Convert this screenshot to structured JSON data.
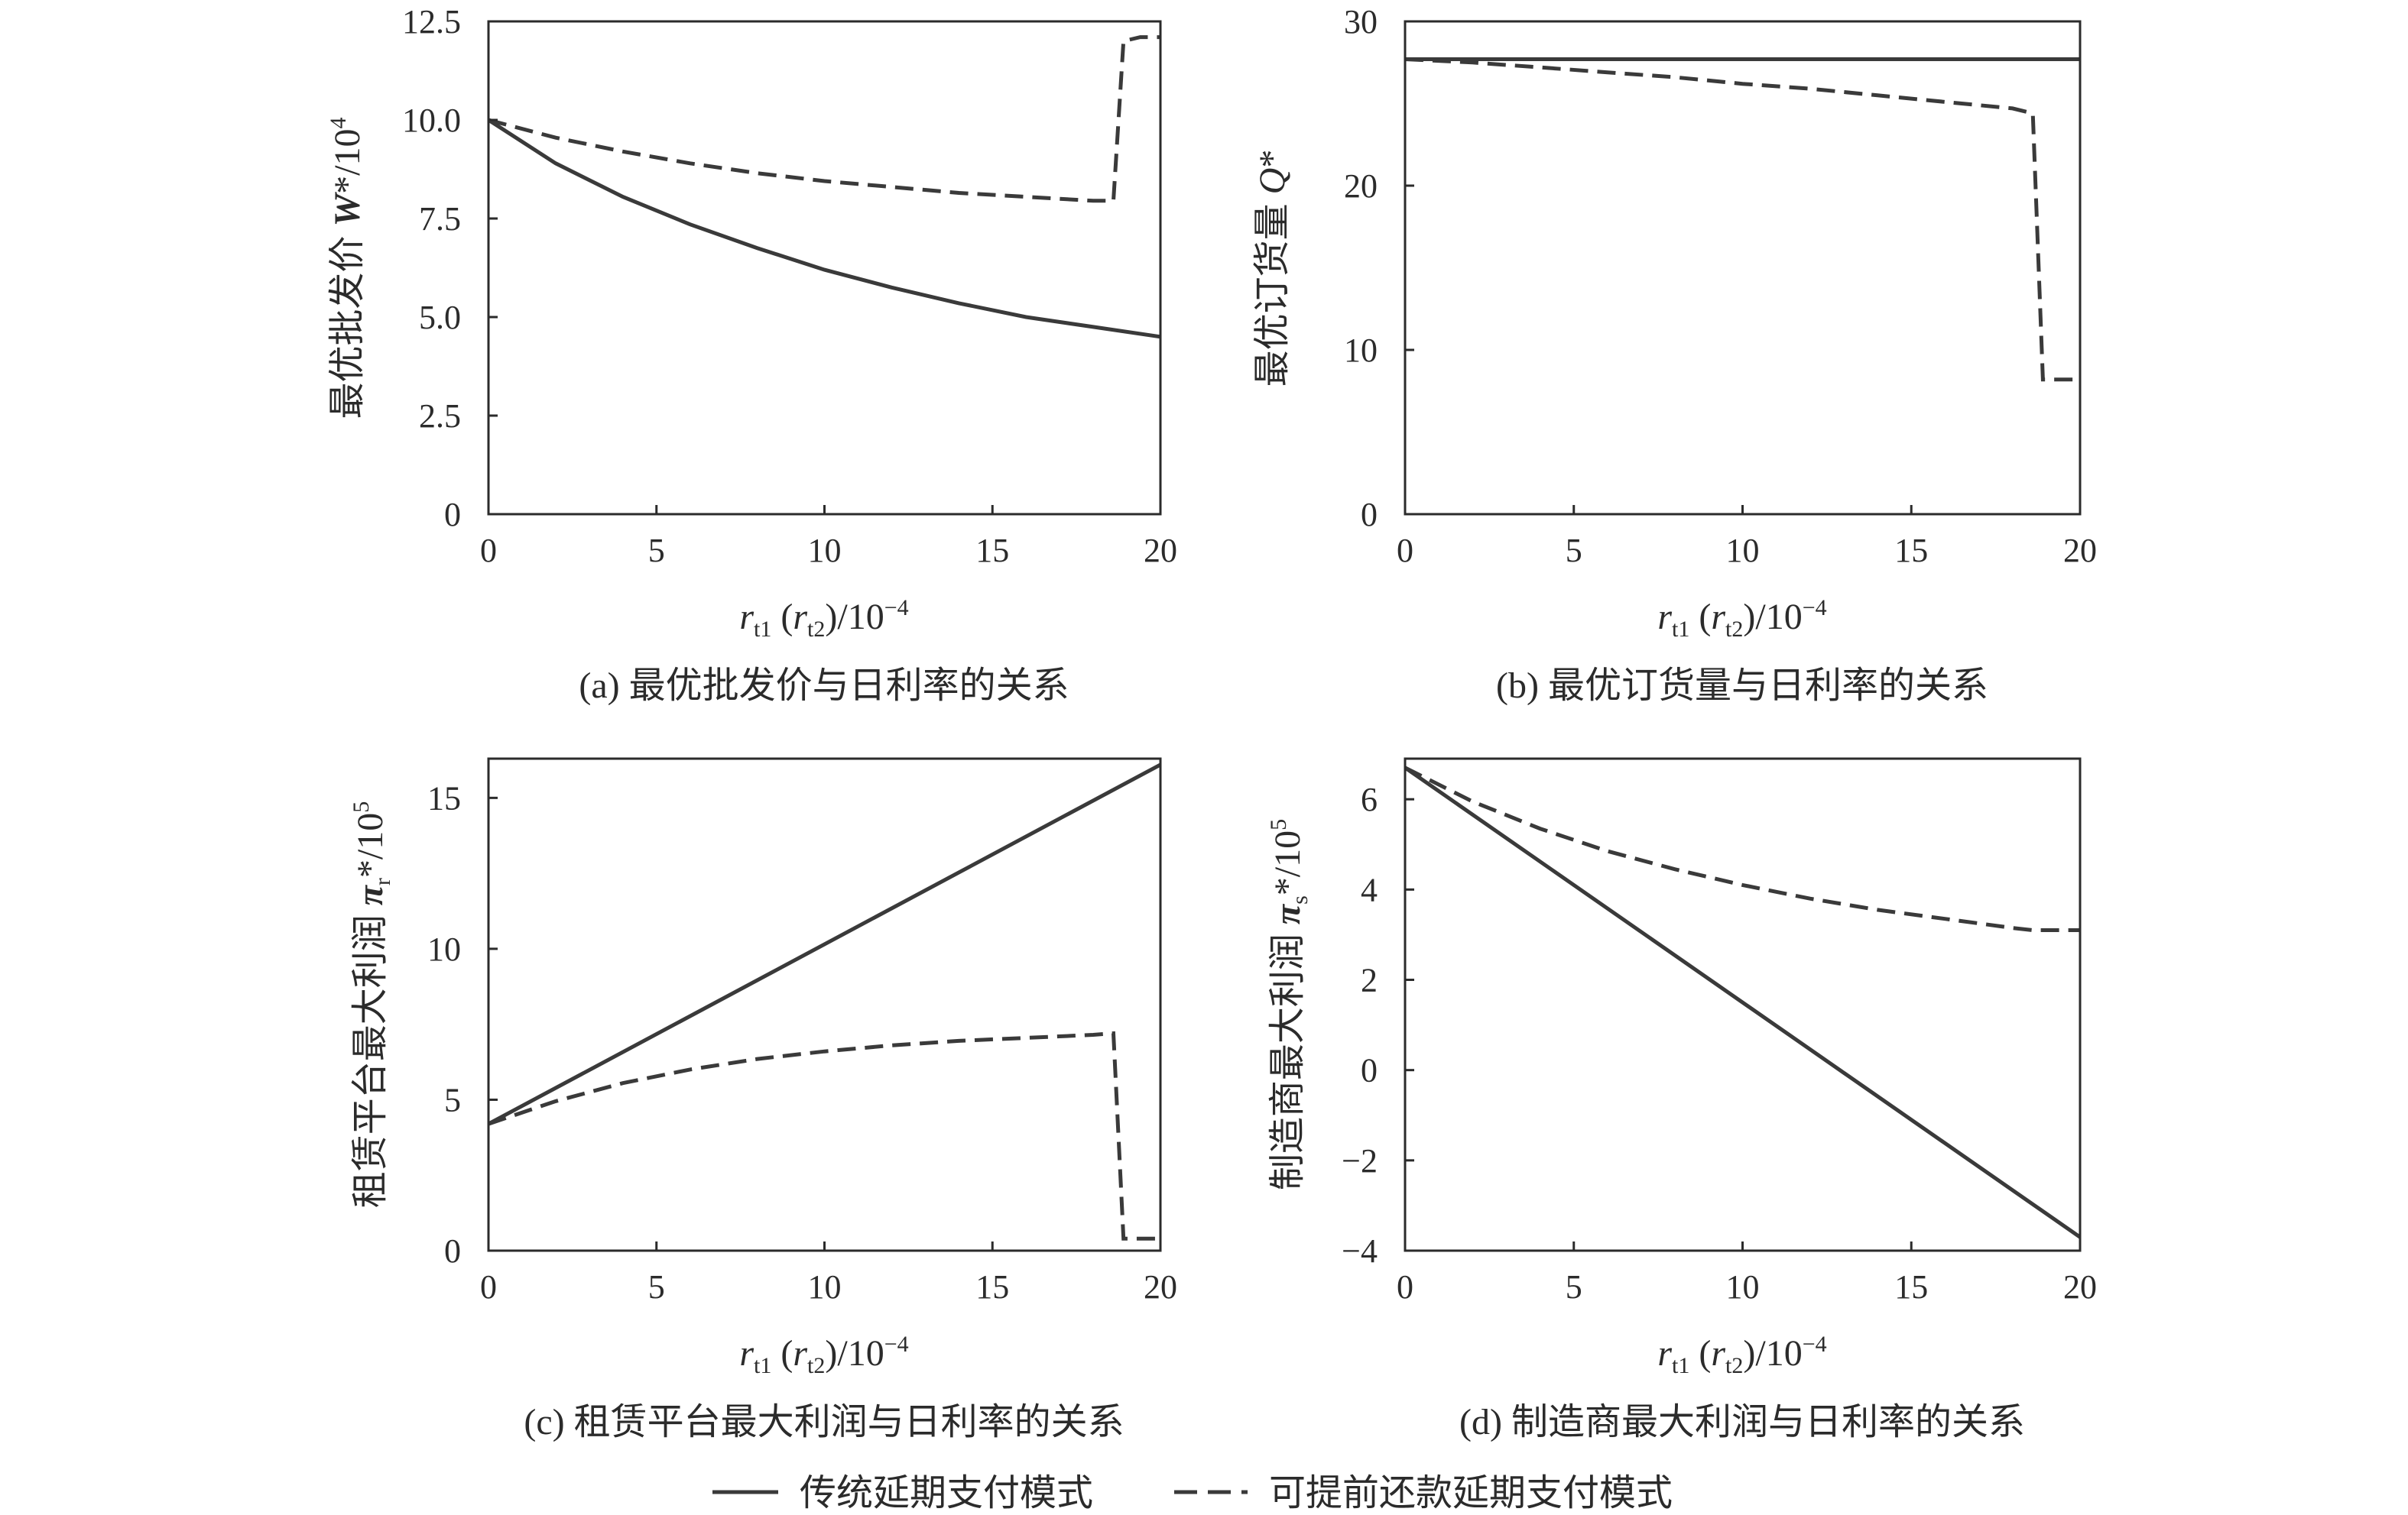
{
  "legend": {
    "solid_label": "传统延期支付模式",
    "dashed_label": "可提前还款延期支付模式"
  },
  "chart_data": [
    {
      "id": "a",
      "type": "line",
      "caption": "(a) 最优批发价与日利率的关系",
      "ylabel": "最优批发价 W*/10⁴",
      "xlabel": "rt1 (rt2)/10⁻⁴",
      "xlim": [
        0,
        20
      ],
      "ylim": [
        0,
        12.5
      ],
      "xticks": [
        "0",
        "5",
        "10",
        "15",
        "20"
      ],
      "yticks": [
        "0",
        "2.5",
        "5.0",
        "7.5",
        "10.0",
        "12.5"
      ],
      "series": [
        {
          "style": "solid",
          "x": [
            0,
            2,
            4,
            6,
            8,
            10,
            12,
            14,
            16,
            18,
            20
          ],
          "y": [
            10.0,
            8.9,
            8.05,
            7.35,
            6.75,
            6.2,
            5.75,
            5.35,
            5.0,
            4.75,
            4.5
          ]
        },
        {
          "style": "dashed",
          "x": [
            0,
            2,
            4,
            6,
            8,
            10,
            12,
            14,
            16,
            18,
            18.6,
            18.9,
            19.4,
            20
          ],
          "y": [
            10.0,
            9.55,
            9.2,
            8.9,
            8.65,
            8.45,
            8.3,
            8.15,
            8.05,
            7.95,
            7.95,
            12.0,
            12.1,
            12.1
          ]
        }
      ]
    },
    {
      "id": "b",
      "type": "line",
      "caption": "(b) 最优订货量与日利率的关系",
      "ylabel": "最优订货量 Q*",
      "xlabel": "rt1 (rt2)/10⁻⁴",
      "xlim": [
        0,
        20
      ],
      "ylim": [
        0,
        30
      ],
      "xticks": [
        "0",
        "5",
        "10",
        "15",
        "20"
      ],
      "yticks": [
        "0",
        "10",
        "20",
        "30"
      ],
      "series": [
        {
          "style": "solid",
          "x": [
            0,
            20
          ],
          "y": [
            27.7,
            27.7
          ]
        },
        {
          "style": "dashed",
          "x": [
            0,
            2,
            4,
            6,
            8,
            10,
            12,
            14,
            16,
            18,
            18.6,
            18.9,
            20
          ],
          "y": [
            27.7,
            27.5,
            27.2,
            26.9,
            26.6,
            26.2,
            25.9,
            25.5,
            25.1,
            24.7,
            24.4,
            8.2,
            8.2
          ]
        }
      ]
    },
    {
      "id": "c",
      "type": "line",
      "caption": "(c) 租赁平台最大利润与日利率的关系",
      "ylabel": "租赁平台最大利润 π*r/10⁵",
      "xlabel": "rt1 (rt2)/10⁻⁴",
      "xlim": [
        0,
        20
      ],
      "ylim": [
        0,
        16.3
      ],
      "xticks": [
        "0",
        "5",
        "10",
        "15",
        "20"
      ],
      "yticks": [
        "0",
        "5",
        "10",
        "15"
      ],
      "series": [
        {
          "style": "solid",
          "x": [
            0,
            20
          ],
          "y": [
            4.2,
            16.1
          ]
        },
        {
          "style": "dashed",
          "x": [
            0,
            2,
            4,
            6,
            8,
            10,
            12,
            14,
            16,
            18,
            18.6,
            18.9,
            20
          ],
          "y": [
            4.2,
            4.95,
            5.55,
            6.0,
            6.35,
            6.6,
            6.8,
            6.95,
            7.05,
            7.15,
            7.2,
            0.4,
            0.4
          ]
        }
      ]
    },
    {
      "id": "d",
      "type": "line",
      "caption": "(d) 制造商最大利润与日利率的关系",
      "ylabel": "制造商最大利润 π*s/10⁵",
      "xlabel": "rt1 (rt2)/10⁻⁴",
      "xlim": [
        0,
        20
      ],
      "ylim": [
        -4,
        6.9
      ],
      "xticks": [
        "0",
        "5",
        "10",
        "15",
        "20"
      ],
      "yticks": [
        "−4",
        "−2",
        "0",
        "2",
        "4",
        "6"
      ],
      "series": [
        {
          "style": "solid",
          "x": [
            0,
            20
          ],
          "y": [
            6.7,
            -3.7
          ]
        },
        {
          "style": "dashed",
          "x": [
            0,
            2,
            4,
            6,
            8,
            10,
            12,
            14,
            16,
            18,
            18.6,
            20
          ],
          "y": [
            6.7,
            5.95,
            5.35,
            4.85,
            4.45,
            4.1,
            3.8,
            3.55,
            3.35,
            3.15,
            3.1,
            3.1
          ]
        }
      ]
    }
  ]
}
